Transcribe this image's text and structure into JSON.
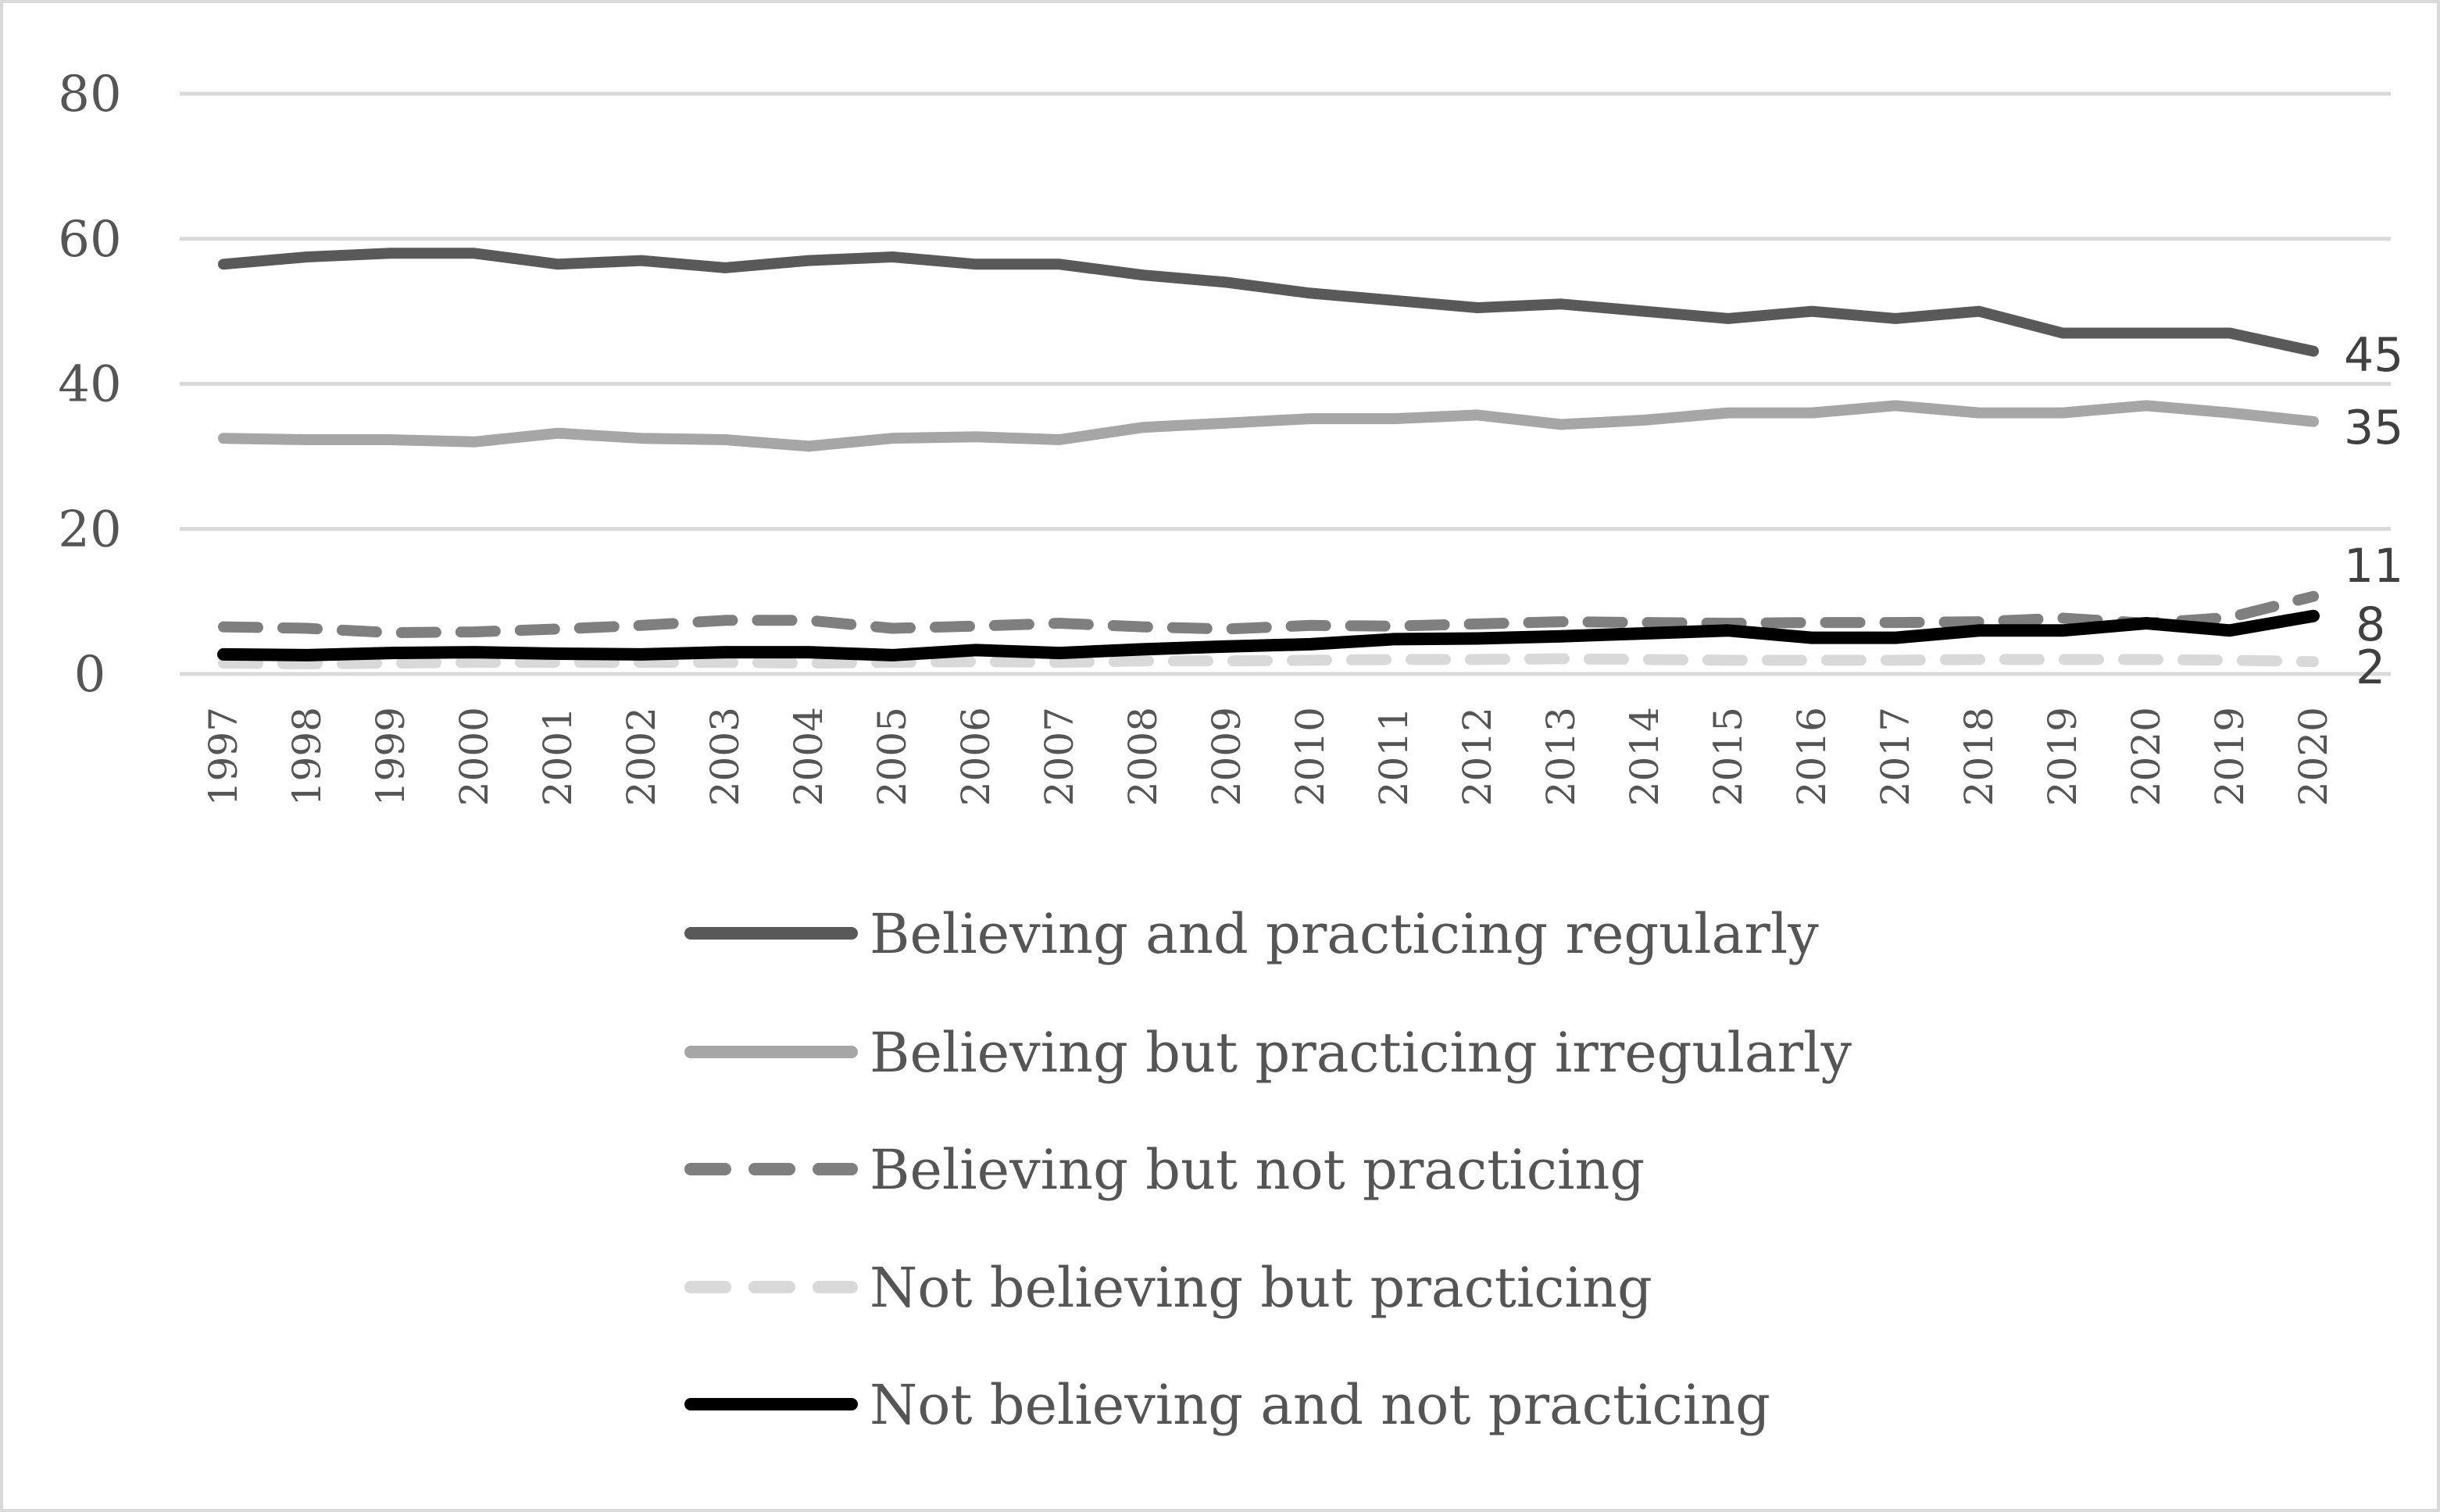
{
  "chart_data": {
    "type": "line",
    "title": "",
    "xlabel": "",
    "ylabel": "",
    "ylim": [
      0,
      80
    ],
    "yticks": [
      0,
      20,
      40,
      60,
      80
    ],
    "grid": true,
    "legend_position": "bottom",
    "categories": [
      "1997",
      "1998",
      "1999",
      "2000",
      "2001",
      "2002",
      "2003",
      "2004",
      "2005",
      "2006",
      "2007",
      "2008",
      "2009",
      "2010",
      "2011",
      "2012",
      "2013",
      "2014",
      "2015",
      "2016",
      "2017",
      "2018",
      "2019",
      "2020",
      "2019",
      "2020"
    ],
    "series": [
      {
        "name": "Believing and practicing regularly",
        "color": "#595959",
        "style": "solid",
        "values": [
          56.5,
          57.5,
          58,
          58,
          56.5,
          57,
          56,
          57,
          57.5,
          56.5,
          56.5,
          55,
          54,
          52.5,
          51.5,
          50.5,
          51,
          50,
          49,
          50,
          49,
          50,
          47,
          47,
          47,
          44.5
        ],
        "end_label": "45"
      },
      {
        "name": "Believing but practicing irregularly",
        "color": "#a6a6a6",
        "style": "solid",
        "values": [
          32.5,
          32.3,
          32.3,
          32,
          33.2,
          32.5,
          32.3,
          31.4,
          32.5,
          32.7,
          32.3,
          34,
          34.6,
          35.2,
          35.2,
          35.7,
          34.4,
          35,
          36,
          36,
          37,
          36,
          36,
          37,
          36,
          34.8
        ],
        "end_label": "35"
      },
      {
        "name": "Believing but not practicing",
        "color": "#7f7f7f",
        "style": "dashed",
        "values": [
          6.5,
          6.3,
          5.7,
          5.8,
          6.2,
          6.7,
          7.4,
          7.4,
          6.3,
          6.6,
          7,
          6.5,
          6.2,
          6.7,
          6.6,
          6.9,
          7.2,
          7.1,
          7,
          7.1,
          7.1,
          7.2,
          7.7,
          7,
          7.8,
          10.7
        ],
        "end_label": "11"
      },
      {
        "name": "Not believing but practicing",
        "color": "#d9d9d9",
        "style": "dashed",
        "values": [
          1.5,
          1.4,
          1.5,
          1.6,
          1.6,
          1.6,
          1.6,
          1.5,
          1.6,
          1.7,
          1.6,
          1.8,
          1.8,
          1.9,
          2,
          2,
          2.1,
          2,
          1.9,
          1.9,
          1.9,
          2,
          2,
          2,
          1.9,
          1.7
        ],
        "end_label": "2"
      },
      {
        "name": "Not believing and not practicing",
        "color": "#000000",
        "style": "solid",
        "values": [
          2.7,
          2.6,
          2.9,
          3,
          2.8,
          2.7,
          3,
          3,
          2.6,
          3.3,
          2.9,
          3.4,
          3.8,
          4.1,
          4.8,
          4.9,
          5.2,
          5.6,
          6,
          5,
          5,
          6,
          6,
          7,
          6,
          8
        ],
        "end_label": "8"
      }
    ]
  }
}
